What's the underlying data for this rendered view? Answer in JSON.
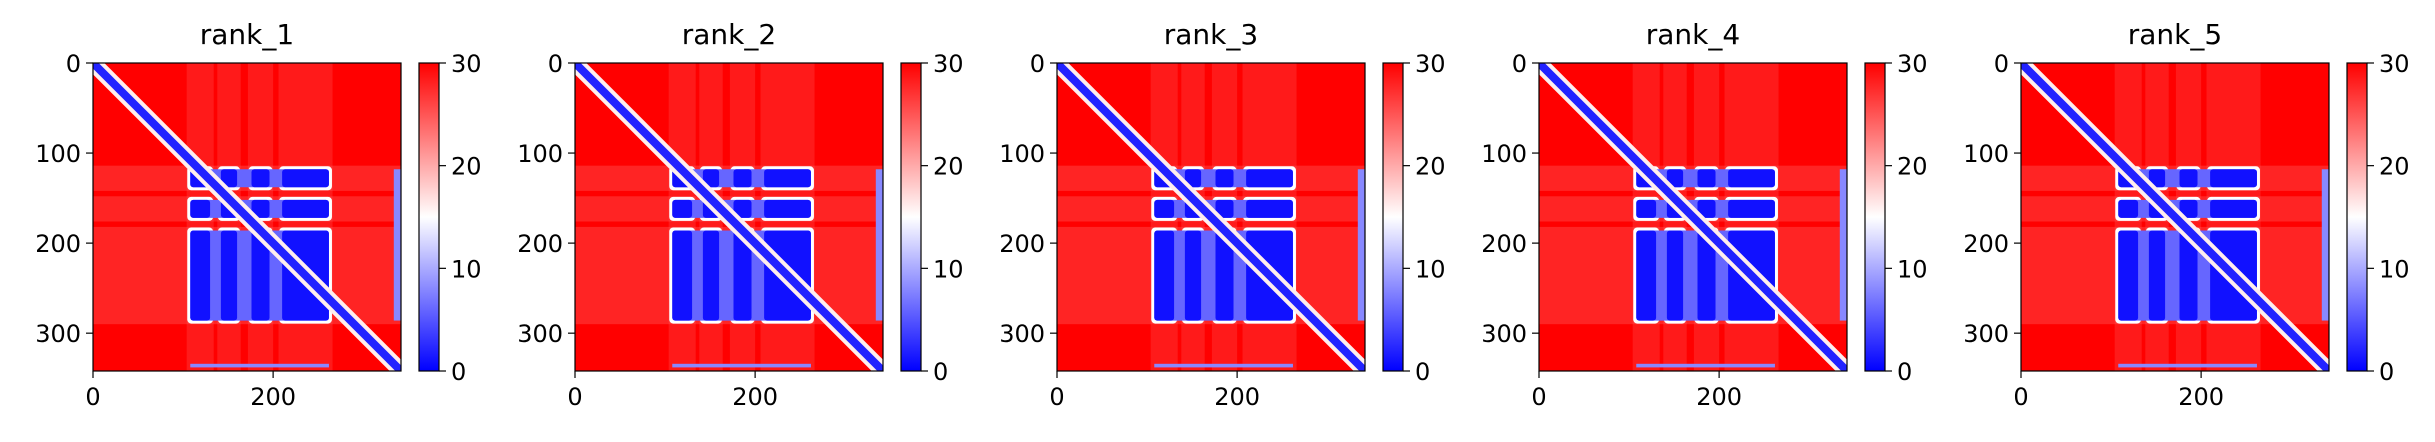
{
  "chart_data": {
    "type": "heatmap",
    "colormap": [
      "#0000ff",
      "#ffffff",
      "#ff0000"
    ],
    "colorbar": {
      "vmin": 0,
      "vmax": 30,
      "ticks": [
        0,
        10,
        20,
        30
      ],
      "tick_labels": [
        "0",
        "10",
        "20",
        "30"
      ]
    },
    "x_range": [
      0,
      342
    ],
    "y_range": [
      0,
      342
    ],
    "x_ticks": [
      0,
      200
    ],
    "x_tick_labels": [
      "0",
      "200"
    ],
    "y_ticks": [
      0,
      100,
      200,
      300
    ],
    "y_tick_labels": [
      "0",
      "100",
      "200",
      "300"
    ],
    "diagonal_band_value": 2,
    "background_value": 30,
    "blocks": {
      "description_free": true,
      "rows": [
        [
          118,
          138
        ],
        [
          152,
          172
        ],
        [
          186,
          286
        ]
      ],
      "cols": [
        [
          108,
          130
        ],
        [
          142,
          160
        ],
        [
          176,
          196
        ],
        [
          210,
          262
        ]
      ],
      "value": 1
    },
    "panels": [
      {
        "title": "rank_1"
      },
      {
        "title": "rank_2"
      },
      {
        "title": "rank_3"
      },
      {
        "title": "rank_4"
      },
      {
        "title": "rank_5"
      }
    ]
  }
}
